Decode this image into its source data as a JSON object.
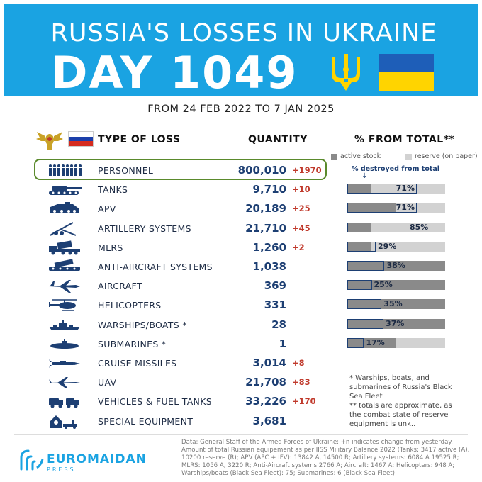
{
  "header": {
    "title_line1": "RUSSIA'S LOSSES IN UKRAINE",
    "title_line2": "DAY 1049",
    "colors": {
      "banner": "#1aa3e2",
      "flag_blue": "#1e5eb8",
      "flag_yellow": "#ffd400"
    }
  },
  "subtitle": "FROM 24 FEB 2022 TO 7 JAN 2025",
  "columns": {
    "type": "TYPE OF LOSS",
    "quantity": "QUANTITY",
    "percent": "% FROM TOTAL**"
  },
  "legend": {
    "active": "active stock",
    "reserve": "reserve (on paper)",
    "destroyed": "% destroyed from total",
    "arrow": "↓"
  },
  "chart_data": {
    "type": "table",
    "rows": [
      {
        "name": "PERSONNEL",
        "quantity": "800,010",
        "delta": "+1970",
        "icon": "soldiers-icon",
        "highlight": true
      },
      {
        "name": "TANKS",
        "quantity": "9,710",
        "delta": "+10",
        "icon": "tank-icon",
        "pct": "71%",
        "destroyed": 71,
        "active": 24,
        "reserve": 100
      },
      {
        "name": "APV",
        "quantity": "20,189",
        "delta": "+25",
        "icon": "apc-icon",
        "pct": "71%",
        "destroyed": 71,
        "active": 49,
        "reserve": 100
      },
      {
        "name": "ARTILLERY SYSTEMS",
        "quantity": "21,710",
        "delta": "+45",
        "icon": "artillery-icon",
        "pct": "85%",
        "destroyed": 85,
        "active": 24,
        "reserve": 100
      },
      {
        "name": "MLRS",
        "quantity": "1,260",
        "delta": "+2",
        "icon": "mlrs-icon",
        "pct": "29%",
        "destroyed": 29,
        "active": 24,
        "reserve": 100
      },
      {
        "name": "ANTI-AIRCRAFT SYSTEMS",
        "quantity": "1,038",
        "delta": "",
        "icon": "anti-aircraft-icon",
        "pct": "38%",
        "destroyed": 38,
        "active": 100,
        "reserve": 100
      },
      {
        "name": "AIRCRAFT",
        "quantity": "369",
        "delta": "",
        "icon": "aircraft-icon",
        "pct": "25%",
        "destroyed": 25,
        "active": 100,
        "reserve": 100
      },
      {
        "name": "HELICOPTERS",
        "quantity": "331",
        "delta": "",
        "icon": "helicopter-icon",
        "pct": "35%",
        "destroyed": 35,
        "active": 100,
        "reserve": 100
      },
      {
        "name": "WARSHIPS/BOATS *",
        "quantity": "28",
        "delta": "",
        "icon": "warship-icon",
        "pct": "37%",
        "destroyed": 37,
        "active": 100,
        "reserve": 100
      },
      {
        "name": "SUBMARINES *",
        "quantity": "1",
        "delta": "",
        "icon": "submarine-icon",
        "pct": "17%",
        "destroyed": 17,
        "active": 50,
        "reserve": 100
      },
      {
        "name": "CRUISE MISSILES",
        "quantity": "3,014",
        "delta": "+8",
        "icon": "missile-icon"
      },
      {
        "name": "UAV",
        "quantity": "21,708",
        "delta": "+83",
        "icon": "drone-icon"
      },
      {
        "name": "VEHICLES & FUEL TANKS",
        "quantity": "33,226",
        "delta": "+170",
        "icon": "truck-icon"
      },
      {
        "name": "SPECIAL EQUIPMENT",
        "quantity": "3,681",
        "delta": "",
        "icon": "special-equipment-icon"
      }
    ]
  },
  "footnotes": [
    "* Warships, boats, and submarines of Russia's Black Sea Fleet",
    "** totals are approximate, as the combat state of reserve equipment is unk.."
  ],
  "logo": {
    "name": "EUROMAIDAN",
    "sub": "PRESS"
  },
  "source": "Data: General Staff of the Armed Forces of Ukraine; +n indicates change from yesterday. Amount of total Russian equipement as per IISS Military Balance 2022 (Tanks: 3417 active (A), 10200 reserve (R); APV (APC + IFV): 13842 A, 14500 R; Artillery systems: 6084 A 19525 R; MLRS: 1056 A, 3220 R; Anti-Aircraft systems 2766 A; Aircraft: 1467 A; Helicopters: 948 A; Warships/boats (Black Sea Fleet): 75; Submarines: 6 (Black Sea Fleet)"
}
